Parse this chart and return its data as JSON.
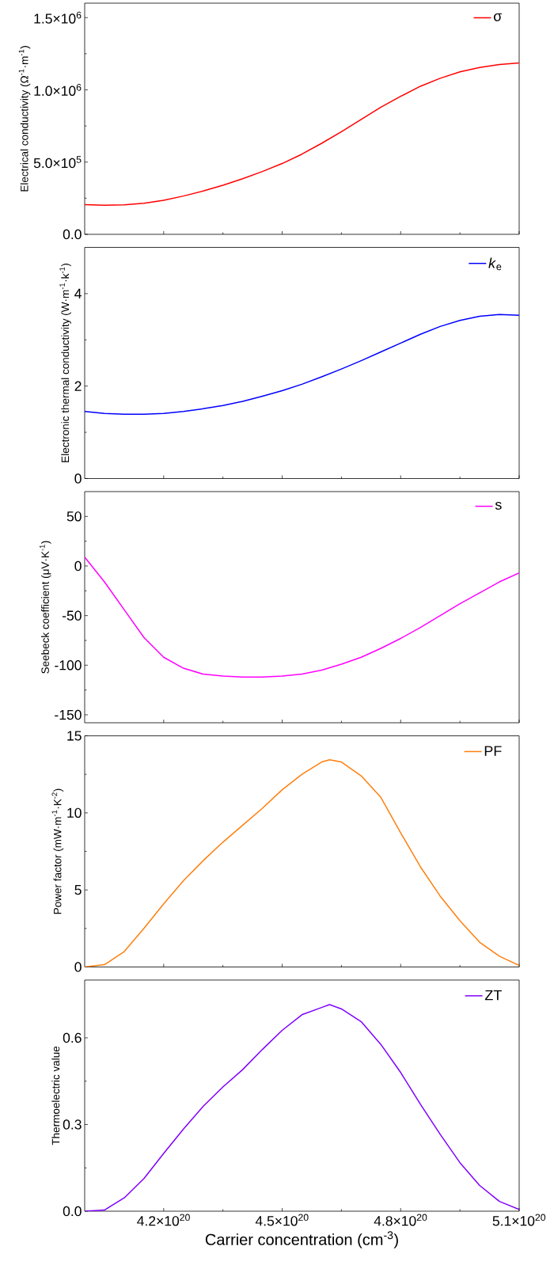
{
  "chart_data": [
    {
      "type": "line",
      "ylabel": "Electrical conductivity (Ω$^{-1}$·m$^{-1}$)",
      "xlim": [
        4e+20,
        5.1e+20
      ],
      "ylim": [
        0,
        1600000
      ],
      "tick_labels": "y",
      "legend": "top right",
      "xticks": [
        {
          "value": 4.2e+20,
          "label": null
        },
        {
          "value": 4.5e+20,
          "label": null
        },
        {
          "value": 4.8e+20,
          "label": null
        },
        {
          "value": 5.1e+20,
          "label": null
        }
      ],
      "yticks": [
        {
          "value": 0,
          "label": "0.0"
        },
        {
          "value": 500000,
          "label": "5.0×10$^{5}$"
        },
        {
          "value": 1000000,
          "label": "1.0×10$^{6}$"
        },
        {
          "value": 1500000,
          "label": "1.5×10$^{6}$"
        }
      ],
      "x": [
        4e+20,
        4.05e+20,
        4.1e+20,
        4.15e+20,
        4.2e+20,
        4.25e+20,
        4.3e+20,
        4.35e+20,
        4.4e+20,
        4.45e+20,
        4.5e+20,
        4.55e+20,
        4.6e+20,
        4.65e+20,
        4.7e+20,
        4.75e+20,
        4.8e+20,
        4.85e+20,
        4.9e+20,
        4.95e+20,
        5e+20,
        5.05e+20,
        5.1e+20
      ],
      "series": [
        {
          "name": "σ",
          "color": "#ff0000",
          "values": [
            206000,
            202000,
            204000,
            215000,
            235000,
            265000,
            300000,
            340000,
            385000,
            435000,
            490000,
            555000,
            630000,
            710000,
            795000,
            880000,
            955000,
            1025000,
            1080000,
            1125000,
            1155000,
            1175000,
            1186000
          ]
        }
      ]
    },
    {
      "type": "line",
      "ylabel": "Electronic thermal conductivity (W·m$^{-1}$·k$^{-1}$)",
      "xlim": [
        4e+20,
        5.1e+20
      ],
      "ylim": [
        0,
        5
      ],
      "tick_labels": "y",
      "legend": "top right",
      "xticks": [
        {
          "value": 4.2e+20,
          "label": null
        },
        {
          "value": 4.5e+20,
          "label": null
        },
        {
          "value": 4.8e+20,
          "label": null
        },
        {
          "value": 5.1e+20,
          "label": null
        }
      ],
      "yticks": [
        0,
        2,
        4
      ],
      "x": [
        4e+20,
        4.05e+20,
        4.1e+20,
        4.15e+20,
        4.2e+20,
        4.25e+20,
        4.3e+20,
        4.35e+20,
        4.4e+20,
        4.45e+20,
        4.5e+20,
        4.55e+20,
        4.6e+20,
        4.65e+20,
        4.7e+20,
        4.75e+20,
        4.8e+20,
        4.85e+20,
        4.9e+20,
        4.95e+20,
        5e+20,
        5.05e+20,
        5.1e+20
      ],
      "series": [
        {
          "name": "*k*$_{e}$",
          "color": "#0000ff",
          "values": [
            1.45,
            1.41,
            1.39,
            1.39,
            1.41,
            1.45,
            1.51,
            1.58,
            1.67,
            1.78,
            1.9,
            2.04,
            2.2,
            2.37,
            2.55,
            2.74,
            2.93,
            3.12,
            3.29,
            3.42,
            3.51,
            3.55,
            3.53
          ]
        }
      ]
    },
    {
      "type": "line",
      "ylabel": "Seebeck coefficient (μV·K$^{-1}$)",
      "xlim": [
        4e+20,
        5.1e+20
      ],
      "ylim": [
        -158,
        75
      ],
      "tick_labels": "y",
      "legend": "top right",
      "xticks": [
        {
          "value": 4.2e+20,
          "label": null
        },
        {
          "value": 4.5e+20,
          "label": null
        },
        {
          "value": 4.8e+20,
          "label": null
        },
        {
          "value": 5.1e+20,
          "label": null
        }
      ],
      "yticks": [
        -150,
        -100,
        -50,
        0,
        50
      ],
      "x": [
        4e+20,
        4.05e+20,
        4.1e+20,
        4.15e+20,
        4.2e+20,
        4.25e+20,
        4.3e+20,
        4.35e+20,
        4.4e+20,
        4.45e+20,
        4.5e+20,
        4.55e+20,
        4.6e+20,
        4.65e+20,
        4.7e+20,
        4.75e+20,
        4.8e+20,
        4.85e+20,
        4.9e+20,
        4.95e+20,
        5e+20,
        5.05e+20,
        5.1e+20
      ],
      "series": [
        {
          "name": "s",
          "color": "#ff00ff",
          "values": [
            9,
            -16,
            -44,
            -72,
            -92,
            -103,
            -109,
            -111,
            -112,
            -112,
            -111,
            -109,
            -105,
            -99,
            -92,
            -83,
            -73,
            -62,
            -50,
            -38,
            -27,
            -16,
            -7
          ]
        }
      ]
    },
    {
      "type": "line",
      "ylabel": "Power factor (mW·m$^{-1}$·K$^{-2}$)",
      "xlim": [
        4e+20,
        5.1e+20
      ],
      "ylim": [
        0,
        15
      ],
      "tick_labels": "y",
      "legend": "top right",
      "xticks": [
        {
          "value": 4.2e+20,
          "label": null
        },
        {
          "value": 4.5e+20,
          "label": null
        },
        {
          "value": 4.8e+20,
          "label": null
        },
        {
          "value": 5.1e+20,
          "label": null
        }
      ],
      "yticks": [
        0,
        5,
        10,
        15
      ],
      "x": [
        4e+20,
        4.05e+20,
        4.1e+20,
        4.15e+20,
        4.2e+20,
        4.25e+20,
        4.3e+20,
        4.35e+20,
        4.4e+20,
        4.45e+20,
        4.5e+20,
        4.55e+20,
        4.6e+20,
        4.62e+20,
        4.65e+20,
        4.7e+20,
        4.75e+20,
        4.8e+20,
        4.85e+20,
        4.9e+20,
        4.95e+20,
        5e+20,
        5.05e+20,
        5.1e+20
      ],
      "series": [
        {
          "name": "PF",
          "color": "#ff7f0e",
          "values": [
            0,
            0.15,
            1.0,
            2.5,
            4.1,
            5.6,
            6.9,
            8.1,
            9.2,
            10.3,
            11.5,
            12.5,
            13.3,
            13.45,
            13.3,
            12.4,
            11.0,
            8.7,
            6.5,
            4.6,
            3.0,
            1.6,
            0.7,
            0.1
          ]
        }
      ]
    },
    {
      "type": "line",
      "xlabel": "Carrier concentration (cm$^{-3}$)",
      "ylabel": "Thermoelectric value",
      "xlim": [
        4e+20,
        5.1e+20
      ],
      "ylim": [
        0,
        0.8
      ],
      "legend": "top right",
      "xticks": [
        {
          "value": 4.2e+20,
          "label": "4.2×10$^{20}$"
        },
        {
          "value": 4.5e+20,
          "label": "4.5×10$^{20}$"
        },
        {
          "value": 4.8e+20,
          "label": "4.8×10$^{20}$"
        },
        {
          "value": 5.1e+20,
          "label": "5.1×10$^{20}$"
        }
      ],
      "yticks": [
        {
          "value": 0,
          "label": "0.0"
        },
        {
          "value": 0.3,
          "label": "0.3"
        },
        {
          "value": 0.6,
          "label": "0.6"
        }
      ],
      "x": [
        4e+20,
        4.05e+20,
        4.1e+20,
        4.15e+20,
        4.2e+20,
        4.25e+20,
        4.3e+20,
        4.35e+20,
        4.4e+20,
        4.45e+20,
        4.5e+20,
        4.55e+20,
        4.6e+20,
        4.62e+20,
        4.65e+20,
        4.7e+20,
        4.75e+20,
        4.8e+20,
        4.85e+20,
        4.9e+20,
        4.95e+20,
        5e+20,
        5.05e+20,
        5.1e+20
      ],
      "series": [
        {
          "name": "ZT",
          "color": "#7f00ff",
          "values": [
            0,
            0.004,
            0.046,
            0.113,
            0.2,
            0.284,
            0.363,
            0.43,
            0.49,
            0.56,
            0.626,
            0.68,
            0.705,
            0.715,
            0.7,
            0.656,
            0.577,
            0.48,
            0.37,
            0.266,
            0.168,
            0.089,
            0.034,
            0.006
          ]
        }
      ]
    }
  ]
}
